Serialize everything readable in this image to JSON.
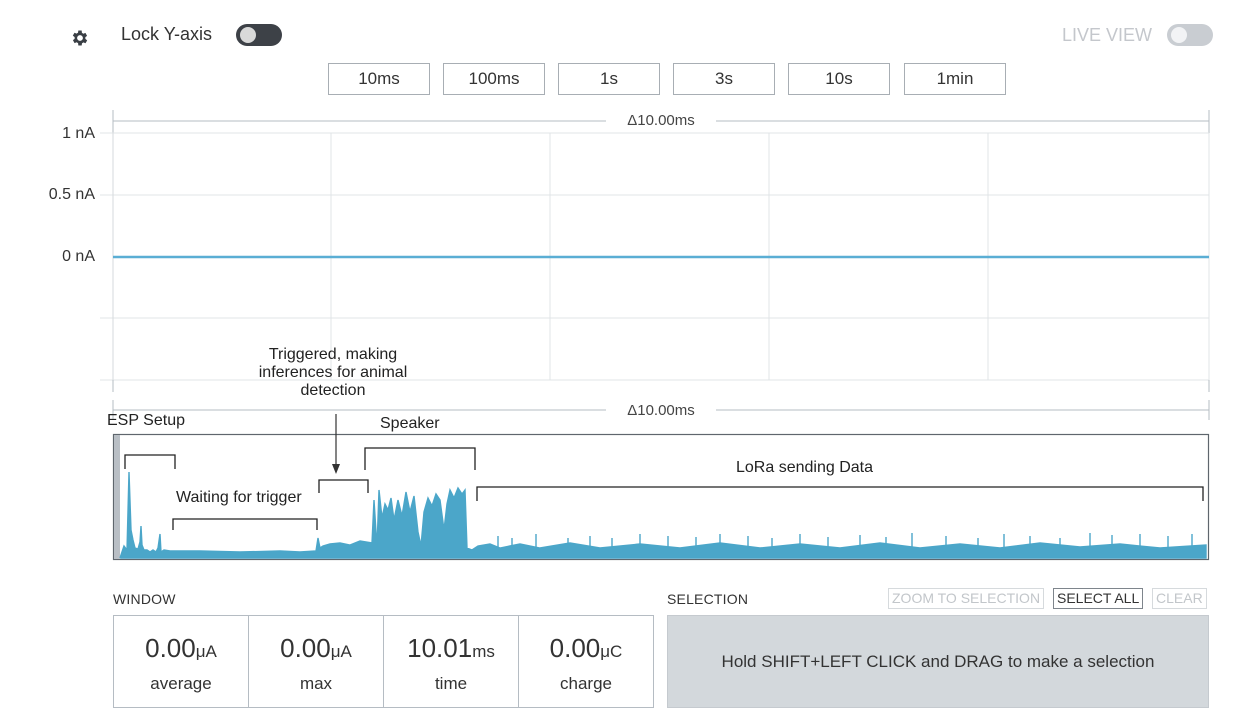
{
  "toolbar": {
    "lock_y_label": "Lock Y-axis",
    "live_view_label": "LIVE VIEW",
    "time_buttons": [
      "10ms",
      "100ms",
      "1s",
      "3s",
      "10s",
      "1min"
    ]
  },
  "main_chart": {
    "y_ticks": [
      "1 nA",
      "0.5 nA",
      "0 nA"
    ],
    "delta_top": "Δ10.00ms",
    "delta_bottom": "Δ10.00ms",
    "line_color": "#5aaed4"
  },
  "annotations": {
    "esp_setup": "ESP Setup",
    "triggered_line1": "Triggered, making",
    "triggered_line2": "inferences for animal",
    "triggered_line3": "detection",
    "speaker": "Speaker",
    "waiting": "Waiting for trigger",
    "lora": "LoRa sending Data"
  },
  "window": {
    "title": "WINDOW",
    "stats": [
      {
        "value": "0.00",
        "unit": "μA",
        "label": "average"
      },
      {
        "value": "0.00",
        "unit": "μA",
        "label": "max"
      },
      {
        "value": "10.01",
        "unit": "ms",
        "label": "time"
      },
      {
        "value": "0.00",
        "unit": "μC",
        "label": "charge"
      }
    ]
  },
  "selection": {
    "title": "SELECTION",
    "zoom_label": "ZOOM TO SELECTION",
    "select_all_label": "SELECT ALL",
    "clear_label": "CLEAR",
    "hint": "Hold SHIFT+LEFT CLICK and DRAG to make a selection"
  },
  "colors": {
    "accent": "#4ba6c9",
    "toggle_on": "#3d4147",
    "toggle_off": "#c9cdd2"
  }
}
